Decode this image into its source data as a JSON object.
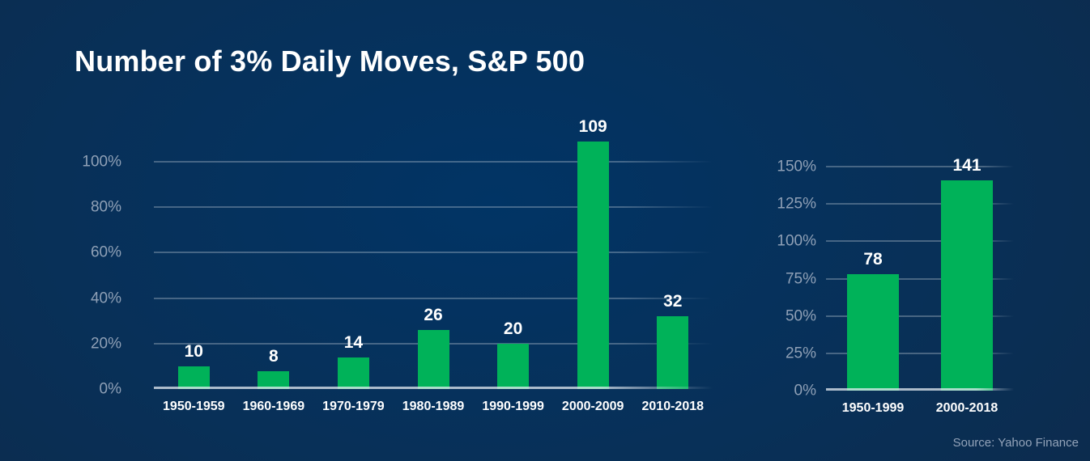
{
  "title": "Number of 3% Daily Moves, S&P 500",
  "source": "Source: Yahoo Finance",
  "colors": {
    "background_center": "#013465",
    "background_edge": "#0e2a4a",
    "bar_green": "#00b259",
    "gridline": "#3e5a7c",
    "axis_line": "#9aa5b2",
    "tick_label": "#8fa0b6",
    "value_label": "#ffffff",
    "category_label": "#ffffff",
    "source_text": "#93a3b9",
    "title_text": "#ffffff"
  },
  "chart_data": [
    {
      "type": "bar",
      "title": "",
      "xlabel": "",
      "ylabel": "",
      "categories": [
        "1950-1959",
        "1960-1969",
        "1970-1979",
        "1980-1989",
        "1990-1999",
        "2000-2009",
        "2010-2018"
      ],
      "values": [
        10,
        8,
        14,
        26,
        20,
        109,
        32
      ],
      "value_labels": [
        "10",
        "8",
        "14",
        "26",
        "20",
        "109",
        "32"
      ],
      "ytick_values": [
        0,
        20,
        40,
        60,
        80,
        100
      ],
      "ytick_labels": [
        "0%",
        "20%",
        "40%",
        "60%",
        "80%",
        "100%"
      ],
      "ylim": [
        0,
        100
      ],
      "grid": true,
      "legend": false,
      "bar_color": "#00b259"
    },
    {
      "type": "bar",
      "title": "",
      "xlabel": "",
      "ylabel": "",
      "categories": [
        "1950-1999",
        "2000-2018"
      ],
      "values": [
        78,
        141
      ],
      "value_labels": [
        "78",
        "141"
      ],
      "ytick_values": [
        0,
        25,
        50,
        75,
        100,
        125,
        150
      ],
      "ytick_labels": [
        "0%",
        "25%",
        "50%",
        "75%",
        "100%",
        "125%",
        "150%"
      ],
      "ylim": [
        0,
        150
      ],
      "grid": true,
      "legend": false,
      "bar_color": "#00b259"
    }
  ]
}
